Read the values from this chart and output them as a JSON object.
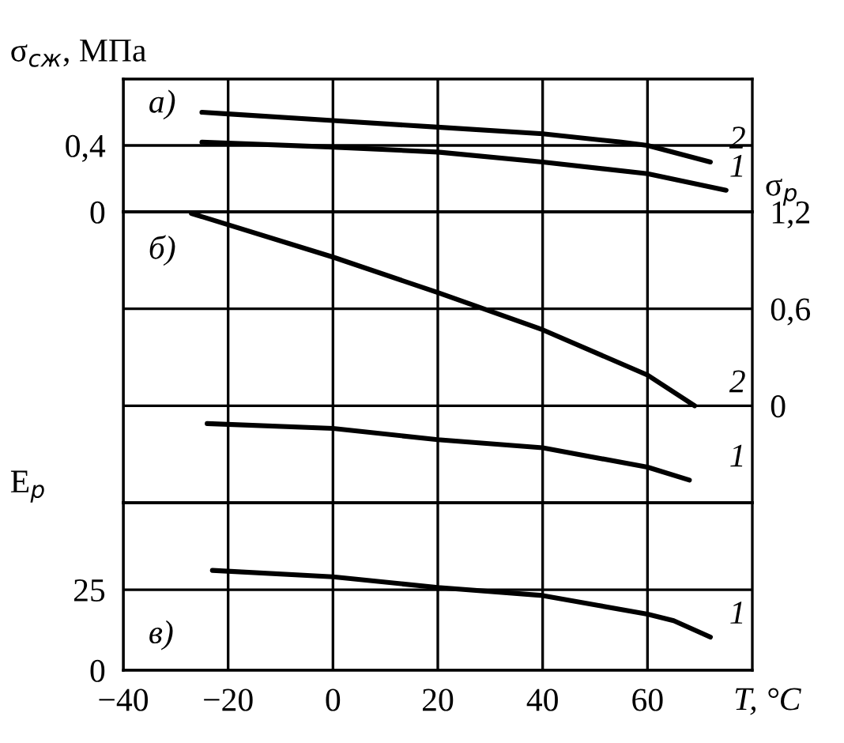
{
  "chart_data": [
    {
      "type": "line",
      "ylabel": "σ$_{сж}$, МПа",
      "xlim": [
        -40,
        80
      ],
      "xticks": [
        -40,
        -20,
        0,
        20,
        40,
        60
      ],
      "ylim": [
        0,
        0.8
      ],
      "yticks": [
        {
          "value": 0,
          "label": "0"
        },
        {
          "value": 0.4,
          "label": "0,4"
        }
      ],
      "grid": true,
      "tick_labels": "y",
      "annotations": [
        "а)"
      ],
      "series": [
        {
          "name": "2",
          "color": "#000000",
          "x": [
            -25,
            -20,
            0,
            20,
            40,
            55,
            60,
            72
          ],
          "values": [
            0.6,
            0.59,
            0.55,
            0.51,
            0.47,
            0.42,
            0.4,
            0.3
          ]
        },
        {
          "name": "1",
          "color": "#000000",
          "x": [
            -25,
            0,
            20,
            40,
            60,
            75
          ],
          "values": [
            0.42,
            0.39,
            0.36,
            0.3,
            0.23,
            0.13
          ]
        }
      ]
    },
    {
      "type": "line",
      "y2label": "σ$_{р}$",
      "xlim": [
        -40,
        80
      ],
      "xticks": [
        -40,
        -20,
        0,
        20,
        40,
        60
      ],
      "y2lim": [
        -0.6,
        1.2
      ],
      "y2ticks": [
        {
          "value": 0,
          "label": "0"
        },
        {
          "value": 0.6,
          "label": "0,6"
        },
        {
          "value": 1.2,
          "label": "1,2"
        }
      ],
      "grid": true,
      "tick_labels": "y",
      "annotations": [
        "б)"
      ],
      "series": [
        {
          "name": "2",
          "color": "#000000",
          "axis": "y2",
          "x": [
            -27,
            0,
            20,
            40,
            60,
            69
          ],
          "values": [
            1.19,
            0.92,
            0.7,
            0.47,
            0.19,
            0.0
          ]
        },
        {
          "name": "1",
          "color": "#000000",
          "axis": "y2",
          "x": [
            -24,
            0,
            20,
            40,
            60,
            68
          ],
          "values": [
            -0.11,
            -0.14,
            -0.21,
            -0.26,
            -0.38,
            -0.46
          ]
        }
      ]
    },
    {
      "type": "line",
      "ylabel": "E$_{р}$",
      "xlabel": "T, °C",
      "xlim": [
        -40,
        80
      ],
      "xticks": [
        {
          "value": -40,
          "label": "−40"
        },
        {
          "value": -20,
          "label": "−20"
        },
        0,
        20,
        40,
        60
      ],
      "ylim": [
        0,
        52
      ],
      "yticks": [
        0,
        25
      ],
      "grid": true,
      "annotations": [
        "в)"
      ],
      "series": [
        {
          "name": "1",
          "color": "#000000",
          "x": [
            -23,
            0,
            20,
            40,
            60,
            65,
            72
          ],
          "values": [
            31,
            29,
            25.7,
            23.2,
            17.4,
            15.4,
            10.3
          ]
        }
      ]
    }
  ]
}
